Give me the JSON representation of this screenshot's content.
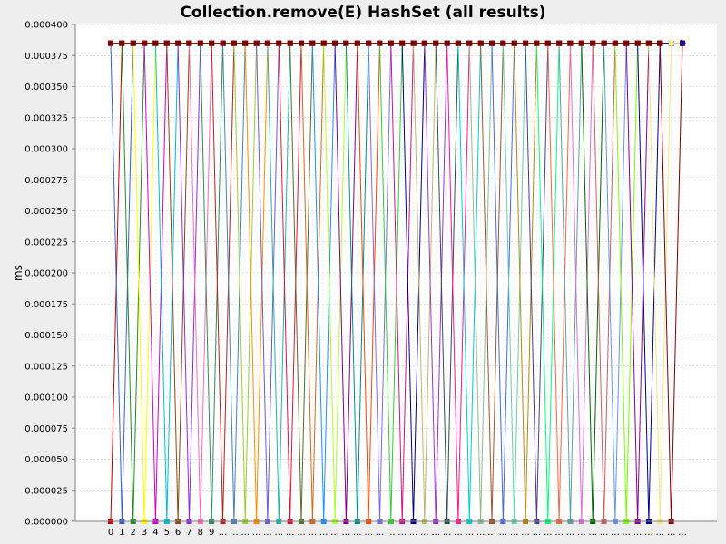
{
  "chart_data": {
    "type": "line",
    "title": "Collection.remove(E) HashSet (all results)",
    "xlabel": "",
    "ylabel": "ms",
    "ylim": [
      0,
      0.0004
    ],
    "ytick_labels": [
      "0.000000",
      "0.000025",
      "0.000050",
      "0.000075",
      "0.000100",
      "0.000125",
      "0.000150",
      "0.000175",
      "0.000200",
      "0.000225",
      "0.000250",
      "0.000275",
      "0.000300",
      "0.000325",
      "0.000350",
      "0.000375",
      "0.000400"
    ],
    "ytick_values": [
      0,
      2.5e-05,
      5e-05,
      7.5e-05,
      0.0001,
      0.000125,
      0.00015,
      0.000175,
      0.0002,
      0.000225,
      0.00025,
      0.000275,
      0.0003,
      0.000325,
      0.00035,
      0.000375,
      0.0004
    ],
    "categories": [
      "0",
      "1",
      "2",
      "3",
      "4",
      "5",
      "6",
      "7",
      "8",
      "9",
      "...",
      "...",
      "...",
      "...",
      "...",
      "...",
      "...",
      "...",
      "...",
      "...",
      "...",
      "...",
      "...",
      "...",
      "...",
      "...",
      "...",
      "...",
      "...",
      "...",
      "...",
      "...",
      "...",
      "...",
      "...",
      "...",
      "...",
      "...",
      "...",
      "...",
      "...",
      "...",
      "...",
      "...",
      "...",
      "...",
      "...",
      "...",
      "...",
      "...",
      "...",
      "..."
    ],
    "grid": true,
    "legend": "none",
    "series_count": 51,
    "low_value": 0,
    "high_value": 0.000385,
    "series_colors": [
      "#c00000",
      "#3a5fcd",
      "#228b22",
      "#ffff00",
      "#cc00cc",
      "#00bcd4",
      "#8b4513",
      "#8a2be2",
      "#ff69b4",
      "#2e8b57",
      "#b22222",
      "#4682b4",
      "#9acd32",
      "#ff8c00",
      "#6a5acd",
      "#20b2aa",
      "#dc143c",
      "#556b2f",
      "#d2691e",
      "#1e90ff",
      "#adff2f",
      "#800080",
      "#008b8b",
      "#ff4500",
      "#7b68ee",
      "#32cd32",
      "#c71585",
      "#000080",
      "#bdb76b",
      "#9932cc",
      "#2f4f4f",
      "#ff1493",
      "#00ced1",
      "#8fbc8f",
      "#a0522d",
      "#4169e1",
      "#66cdaa",
      "#b8860b",
      "#483d8b",
      "#00ff7f",
      "#ff6347",
      "#5f9ea0",
      "#da70d6",
      "#006400",
      "#cd5c5c",
      "#6495ed",
      "#7cfc00",
      "#8b008b",
      "#00008b",
      "#f0e68c",
      "#800000"
    ]
  }
}
